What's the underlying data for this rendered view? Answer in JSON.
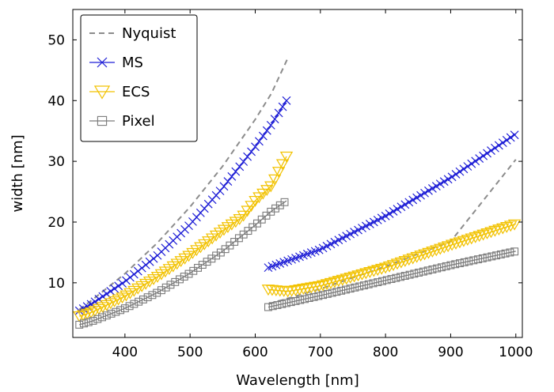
{
  "chart_data": {
    "type": "line",
    "xlabel": "Wavelength [nm]",
    "ylabel": "width [nm]",
    "xlim": [
      320,
      1010
    ],
    "ylim": [
      1,
      55
    ],
    "xticks": [
      400,
      500,
      600,
      700,
      800,
      900,
      1000
    ],
    "yticks": [
      10,
      20,
      30,
      40,
      50
    ],
    "grid": false,
    "legend": "top-left",
    "colors": {
      "Nyquist": "#8c8c8c",
      "MS": "#1f1fd6",
      "ECS": "#f2c200",
      "Pixel": "#7a7a7a"
    },
    "series": [
      {
        "name": "Nyquist",
        "style": "dashed",
        "segments": [
          {
            "x": [
              330,
              350,
              400,
              450,
              500,
              550,
              600,
              625,
              650
            ],
            "y": [
              5.6,
              7.2,
              11.5,
              16.6,
              22.5,
              29.2,
              36.9,
              41.2,
              47.0
            ]
          },
          {
            "x": [
              620,
              700,
              800,
              900,
              1000
            ],
            "y": [
              6.5,
              9.0,
              12.7,
              16.8,
              30.3
            ]
          }
        ]
      },
      {
        "name": "MS",
        "marker": "x",
        "segments": [
          {
            "x": [
              330,
              350,
              400,
              450,
              500,
              550,
              600,
              625,
              648
            ],
            "y": [
              5.4,
              6.6,
              10.2,
              14.5,
              19.6,
              25.6,
              32.4,
              36.1,
              40.0
            ]
          },
          {
            "x": [
              620,
              700,
              800,
              900,
              1000
            ],
            "y": [
              12.5,
              15.5,
              21.0,
              27.3,
              34.5
            ]
          }
        ]
      },
      {
        "name": "ECS",
        "marker": "triangle-down",
        "segments": [
          {
            "x": [
              330,
              350,
              400,
              450,
              500,
              550,
              580,
              600,
              625,
              648
            ],
            "y": [
              4.5,
              5.2,
              7.8,
              11.0,
              14.6,
              18.6,
              20.8,
              23.5,
              26.0,
              30.8
            ]
          },
          {
            "x": [
              620,
              650,
              700,
              800,
              900,
              1000
            ],
            "y": [
              8.9,
              8.6,
              9.5,
              12.5,
              16.2,
              19.7
            ]
          }
        ]
      },
      {
        "name": "Pixel",
        "marker": "square",
        "segments": [
          {
            "x": [
              330,
              350,
              400,
              450,
              500,
              550,
              600,
              625,
              648
            ],
            "y": [
              3.1,
              3.7,
              5.8,
              8.4,
              11.6,
              15.2,
              19.5,
              21.8,
              23.5
            ]
          },
          {
            "x": [
              620,
              700,
              800,
              900,
              1000
            ],
            "y": [
              6.0,
              7.9,
              10.4,
              12.9,
              15.2
            ]
          }
        ]
      }
    ]
  }
}
